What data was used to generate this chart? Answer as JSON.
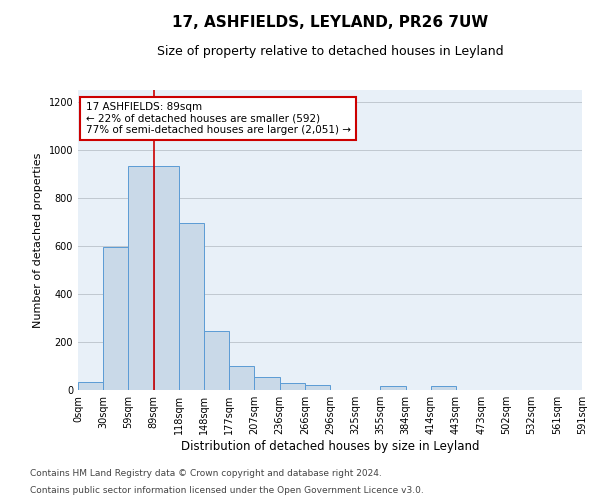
{
  "title": "17, ASHFIELDS, LEYLAND, PR26 7UW",
  "subtitle": "Size of property relative to detached houses in Leyland",
  "xlabel": "Distribution of detached houses by size in Leyland",
  "ylabel": "Number of detached properties",
  "bin_labels": [
    "0sqm",
    "30sqm",
    "59sqm",
    "89sqm",
    "118sqm",
    "148sqm",
    "177sqm",
    "207sqm",
    "236sqm",
    "266sqm",
    "296sqm",
    "325sqm",
    "355sqm",
    "384sqm",
    "414sqm",
    "443sqm",
    "473sqm",
    "502sqm",
    "532sqm",
    "561sqm",
    "591sqm"
  ],
  "bar_values": [
    35,
    595,
    935,
    935,
    695,
    245,
    100,
    55,
    30,
    20,
    0,
    0,
    15,
    0,
    15,
    0,
    0,
    0,
    0,
    0
  ],
  "bar_color": "#c9d9e8",
  "bar_edge_color": "#5b9bd5",
  "red_line_bin_index": 3,
  "annotation_text": "17 ASHFIELDS: 89sqm\n← 22% of detached houses are smaller (592)\n77% of semi-detached houses are larger (2,051) →",
  "annotation_box_color": "#ffffff",
  "annotation_box_edge_color": "#cc0000",
  "ylim": [
    0,
    1250
  ],
  "yticks": [
    0,
    200,
    400,
    600,
    800,
    1000,
    1200
  ],
  "footer_line1": "Contains HM Land Registry data © Crown copyright and database right 2024.",
  "footer_line2": "Contains public sector information licensed under the Open Government Licence v3.0.",
  "background_color": "#ffffff",
  "plot_bg_color": "#e8f0f8",
  "grid_color": "#c0c8d0",
  "title_fontsize": 11,
  "subtitle_fontsize": 9,
  "axis_label_fontsize": 8,
  "tick_fontsize": 7,
  "annotation_fontsize": 7.5,
  "footer_fontsize": 6.5
}
